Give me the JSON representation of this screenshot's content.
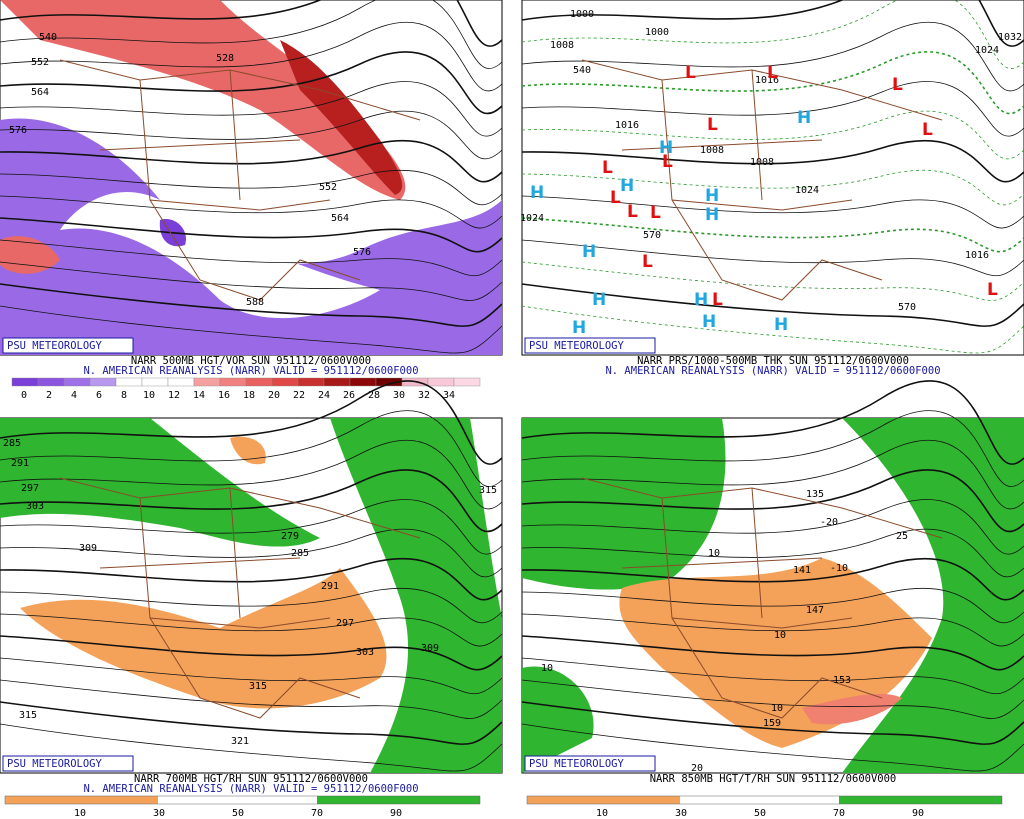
{
  "panels": [
    {
      "title": "NARR 500MB HGT/VOR SUN 951112/0600V000",
      "subtitle": "N. AMERICAN REANALYSIS (NARR) VALID = 951112/0600F000",
      "logo": "PSU METEOROLOGY",
      "colorbar_labels": [
        0,
        2,
        4,
        6,
        8,
        10,
        12,
        14,
        16,
        18,
        20,
        22,
        24,
        26,
        28,
        30,
        32,
        34
      ],
      "colorbar_colors": [
        "#7a3fd6",
        "#8c55e0",
        "#a070e8",
        "#b898ee",
        "#ffffff",
        "#ffffff",
        "#ffffff",
        "#f5a0a0",
        "#f08080",
        "#e86060",
        "#e04848",
        "#c83030",
        "#a81818",
        "#8c0808",
        "#700000",
        "#f0b8c8",
        "#f8c8d8",
        "#fcd8e4"
      ],
      "labels": [
        "540",
        "552",
        "564",
        "576",
        "528",
        "552",
        "564",
        "576",
        "588"
      ]
    },
    {
      "title": "NARR PRS/1000-500MB THK SUN 951112/0600V000",
      "subtitle": "N. AMERICAN REANALYSIS (NARR) VALID = 951112/0600F000",
      "logo": "PSU METEOROLOGY",
      "labels": [
        "1000",
        "1008",
        "540",
        "1000",
        "1016",
        "1008",
        "1016",
        "1024",
        "1008",
        "1024",
        "1032",
        "1016",
        "570",
        "570",
        "1024"
      ],
      "highs": [
        "H",
        "H",
        "H",
        "H",
        "H",
        "H",
        "H",
        "H",
        "H",
        "H",
        "H",
        "H"
      ],
      "lows": [
        "L",
        "L",
        "L",
        "L",
        "L",
        "L",
        "L",
        "L",
        "L",
        "L",
        "L",
        "L",
        "L"
      ]
    },
    {
      "title": "NARR 700MB HGT/RH SUN 951112/0600V000",
      "subtitle": "N. AMERICAN REANALYSIS (NARR) VALID = 951112/0600F000",
      "logo": "PSU METEOROLOGY",
      "colorbar_labels": [
        10,
        30,
        50,
        70,
        90
      ],
      "labels": [
        "285",
        "291",
        "297",
        "303",
        "309",
        "279",
        "285",
        "291",
        "297",
        "303",
        "309",
        "315",
        "315",
        "321",
        "315"
      ]
    },
    {
      "title": "NARR 850MB HGT/T/RH SUN 951112/0600V000",
      "logo": "PSU METEOROLOGY",
      "colorbar_labels": [
        10,
        30,
        50,
        70,
        90
      ],
      "labels": [
        "10",
        "10",
        "10",
        "10",
        "20",
        "-20",
        "-10",
        "147",
        "153",
        "159",
        "135",
        "141",
        "25"
      ]
    }
  ]
}
